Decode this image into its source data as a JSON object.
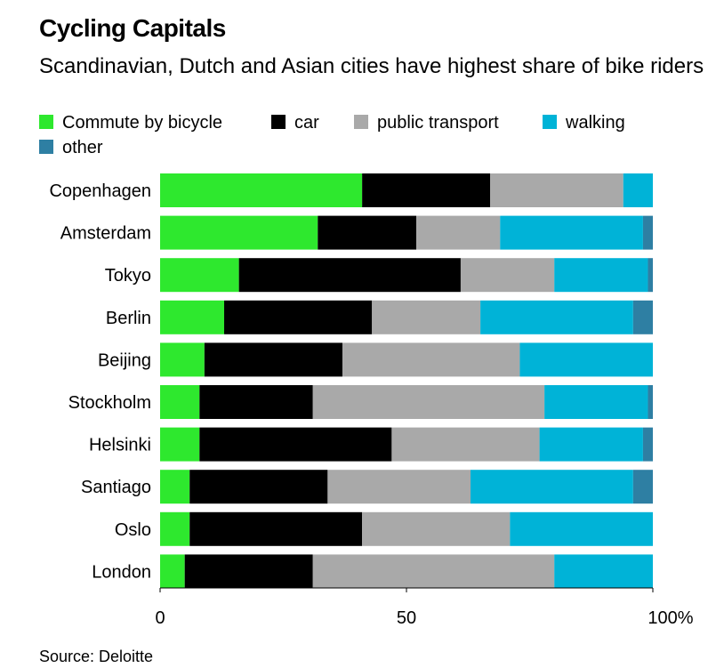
{
  "title": "Cycling Capitals",
  "subtitle": "Scandinavian, Dutch and Asian cities have highest share of bike riders",
  "source": "Source: Deloitte",
  "colors": {
    "bicycle": "#2ee82e",
    "car": "#000000",
    "public_transport": "#a9a9a9",
    "walking": "#00b3d7",
    "other": "#2e7fa3",
    "axis": "#000000",
    "text": "#000000"
  },
  "chart_data": {
    "type": "bar",
    "orientation": "horizontal",
    "stacked": true,
    "title": "Cycling Capitals",
    "subtitle": "Scandinavian, Dutch and Asian cities have highest share of bike riders",
    "xlabel": "",
    "ylabel": "",
    "xlim": [
      0,
      100
    ],
    "x_ticks": [
      0,
      50,
      100
    ],
    "x_tick_labels": [
      "0",
      "50",
      "100%"
    ],
    "grid": false,
    "legend_position": "top",
    "categories": [
      "Copenhagen",
      "Amsterdam",
      "Tokyo",
      "Berlin",
      "Beijing",
      "Stockholm",
      "Helsinki",
      "Santiago",
      "Oslo",
      "London"
    ],
    "series": [
      {
        "key": "bicycle",
        "name": "Commute by bicycle",
        "values": [
          41,
          32,
          16,
          13,
          9,
          8,
          8,
          6,
          6,
          5
        ]
      },
      {
        "key": "car",
        "name": "car",
        "values": [
          26,
          20,
          45,
          30,
          28,
          23,
          39,
          28,
          35,
          26
        ]
      },
      {
        "key": "public_transport",
        "name": "public transport",
        "values": [
          27,
          17,
          19,
          22,
          36,
          47,
          30,
          29,
          30,
          49
        ]
      },
      {
        "key": "walking",
        "name": "walking",
        "values": [
          6,
          29,
          19,
          31,
          27,
          21,
          21,
          33,
          29,
          20
        ]
      },
      {
        "key": "other",
        "name": "other",
        "values": [
          0,
          2,
          1,
          4,
          0,
          1,
          2,
          4,
          0,
          0
        ]
      }
    ]
  }
}
